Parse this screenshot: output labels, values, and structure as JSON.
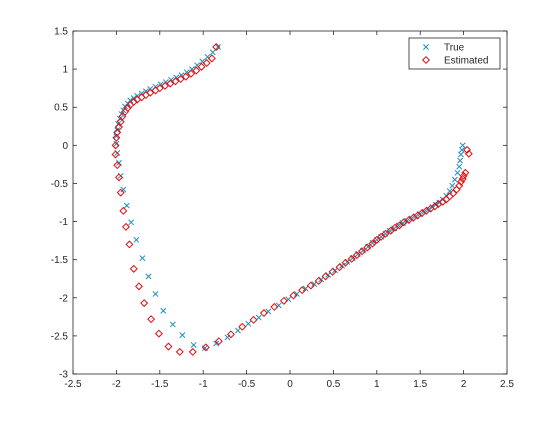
{
  "colors": {
    "true_marker": "#1f8fbf",
    "estimated_marker": "#e01010",
    "axis": "#262626",
    "background": "#ffffff"
  },
  "chart_data": {
    "type": "scatter",
    "title": "",
    "xlabel": "",
    "ylabel": "",
    "xlim": [
      -2.5,
      2.5
    ],
    "ylim": [
      -3,
      1.5
    ],
    "xticks": [
      -2.5,
      -2,
      -1.5,
      -1,
      -0.5,
      0,
      0.5,
      1,
      1.5,
      2,
      2.5
    ],
    "yticks": [
      -3,
      -2.5,
      -2,
      -1.5,
      -1,
      -0.5,
      0,
      0.5,
      1,
      1.5
    ],
    "xtick_labels": [
      "-2.5",
      "-2",
      "-1.5",
      "-1",
      "-0.5",
      "0",
      "0.5",
      "1",
      "1.5",
      "2",
      "2.5"
    ],
    "ytick_labels": [
      "-3",
      "-2.5",
      "-2",
      "-1.5",
      "-1",
      "-0.5",
      "0",
      "0.5",
      "1",
      "1.5"
    ],
    "grid": false,
    "legend_position": "top-right",
    "series": [
      {
        "name": "True",
        "marker": "x",
        "x": [
          1.99,
          1.98,
          1.97,
          1.96,
          1.95,
          1.93,
          1.9,
          1.87,
          1.84,
          1.8,
          1.76,
          1.72,
          1.68,
          1.64,
          1.6,
          1.55,
          1.5,
          1.45,
          1.4,
          1.35,
          1.3,
          1.25,
          1.2,
          1.15,
          1.1,
          1.05,
          1.0,
          0.95,
          0.9,
          0.84,
          0.78,
          0.72,
          0.66,
          0.6,
          0.52,
          0.44,
          0.36,
          0.28,
          0.18,
          0.08,
          -0.02,
          -0.13,
          -0.25,
          -0.36,
          -0.48,
          -0.6,
          -0.72,
          -0.85,
          -0.98,
          -1.11,
          -1.24,
          -1.35,
          -1.46,
          -1.55,
          -1.63,
          -1.7,
          -1.77,
          -1.83,
          -1.88,
          -1.92,
          -1.95,
          -1.97,
          -1.99,
          -2.0,
          -2.0,
          -1.99,
          -1.98,
          -1.96,
          -1.94,
          -1.92,
          -1.9,
          -1.87,
          -1.84,
          -1.8,
          -1.76,
          -1.71,
          -1.66,
          -1.61,
          -1.55,
          -1.49,
          -1.43,
          -1.37,
          -1.31,
          -1.25,
          -1.19,
          -1.13,
          -1.07,
          -1.01,
          -0.95,
          -0.89,
          -0.83
        ],
        "y": [
          0.0,
          -0.06,
          -0.12,
          -0.2,
          -0.28,
          -0.36,
          -0.45,
          -0.53,
          -0.6,
          -0.66,
          -0.71,
          -0.75,
          -0.78,
          -0.81,
          -0.84,
          -0.87,
          -0.9,
          -0.93,
          -0.96,
          -0.99,
          -1.02,
          -1.05,
          -1.09,
          -1.12,
          -1.16,
          -1.2,
          -1.24,
          -1.28,
          -1.33,
          -1.38,
          -1.43,
          -1.48,
          -1.53,
          -1.58,
          -1.64,
          -1.7,
          -1.76,
          -1.82,
          -1.88,
          -1.95,
          -2.02,
          -2.1,
          -2.18,
          -2.26,
          -2.34,
          -2.43,
          -2.52,
          -2.6,
          -2.66,
          -2.62,
          -2.49,
          -2.35,
          -2.17,
          -1.95,
          -1.72,
          -1.48,
          -1.24,
          -1.01,
          -0.79,
          -0.58,
          -0.4,
          -0.23,
          -0.1,
          0.02,
          0.12,
          0.2,
          0.28,
          0.35,
          0.41,
          0.46,
          0.51,
          0.55,
          0.59,
          0.62,
          0.65,
          0.68,
          0.71,
          0.74,
          0.77,
          0.8,
          0.83,
          0.86,
          0.89,
          0.92,
          0.96,
          1.0,
          1.05,
          1.1,
          1.16,
          1.22,
          1.29
        ]
      },
      {
        "name": "Estimated",
        "marker": "diamond",
        "x": [
          2.04,
          2.06,
          2.02,
          2.0,
          1.99,
          1.97,
          1.95,
          1.92,
          1.88,
          1.84,
          1.8,
          1.76,
          1.71,
          1.67,
          1.62,
          1.57,
          1.52,
          1.47,
          1.42,
          1.37,
          1.31,
          1.26,
          1.21,
          1.16,
          1.1,
          1.05,
          1.0,
          0.95,
          0.89,
          0.83,
          0.77,
          0.71,
          0.64,
          0.57,
          0.49,
          0.41,
          0.33,
          0.24,
          0.14,
          0.04,
          -0.07,
          -0.18,
          -0.3,
          -0.42,
          -0.55,
          -0.68,
          -0.82,
          -0.97,
          -1.12,
          -1.27,
          -1.4,
          -1.51,
          -1.6,
          -1.68,
          -1.74,
          -1.8,
          -1.85,
          -1.89,
          -1.92,
          -1.95,
          -1.97,
          -1.99,
          -2.01,
          -2.01,
          -2.0,
          -1.99,
          -1.97,
          -1.95,
          -1.93,
          -1.9,
          -1.87,
          -1.84,
          -1.8,
          -1.76,
          -1.71,
          -1.66,
          -1.61,
          -1.55,
          -1.5,
          -1.44,
          -1.38,
          -1.32,
          -1.26,
          -1.2,
          -1.14,
          -1.08,
          -1.02,
          -0.96,
          -0.9,
          -0.85
        ],
        "y": [
          -0.06,
          -0.11,
          -0.36,
          -0.4,
          -0.44,
          -0.48,
          -0.53,
          -0.58,
          -0.63,
          -0.67,
          -0.71,
          -0.74,
          -0.77,
          -0.8,
          -0.83,
          -0.86,
          -0.89,
          -0.92,
          -0.95,
          -0.98,
          -1.01,
          -1.05,
          -1.08,
          -1.12,
          -1.16,
          -1.2,
          -1.24,
          -1.29,
          -1.34,
          -1.39,
          -1.44,
          -1.49,
          -1.54,
          -1.6,
          -1.66,
          -1.72,
          -1.78,
          -1.84,
          -1.9,
          -1.97,
          -2.04,
          -2.12,
          -2.2,
          -2.29,
          -2.38,
          -2.48,
          -2.57,
          -2.65,
          -2.71,
          -2.71,
          -2.64,
          -2.47,
          -2.28,
          -2.07,
          -1.85,
          -1.62,
          -1.3,
          -1.07,
          -0.86,
          -0.62,
          -0.42,
          -0.26,
          -0.12,
          0.0,
          0.1,
          0.17,
          0.24,
          0.31,
          0.38,
          0.44,
          0.49,
          0.53,
          0.57,
          0.6,
          0.63,
          0.66,
          0.69,
          0.72,
          0.75,
          0.78,
          0.81,
          0.84,
          0.87,
          0.9,
          0.94,
          0.98,
          1.03,
          1.08,
          1.14,
          1.29
        ]
      }
    ]
  }
}
